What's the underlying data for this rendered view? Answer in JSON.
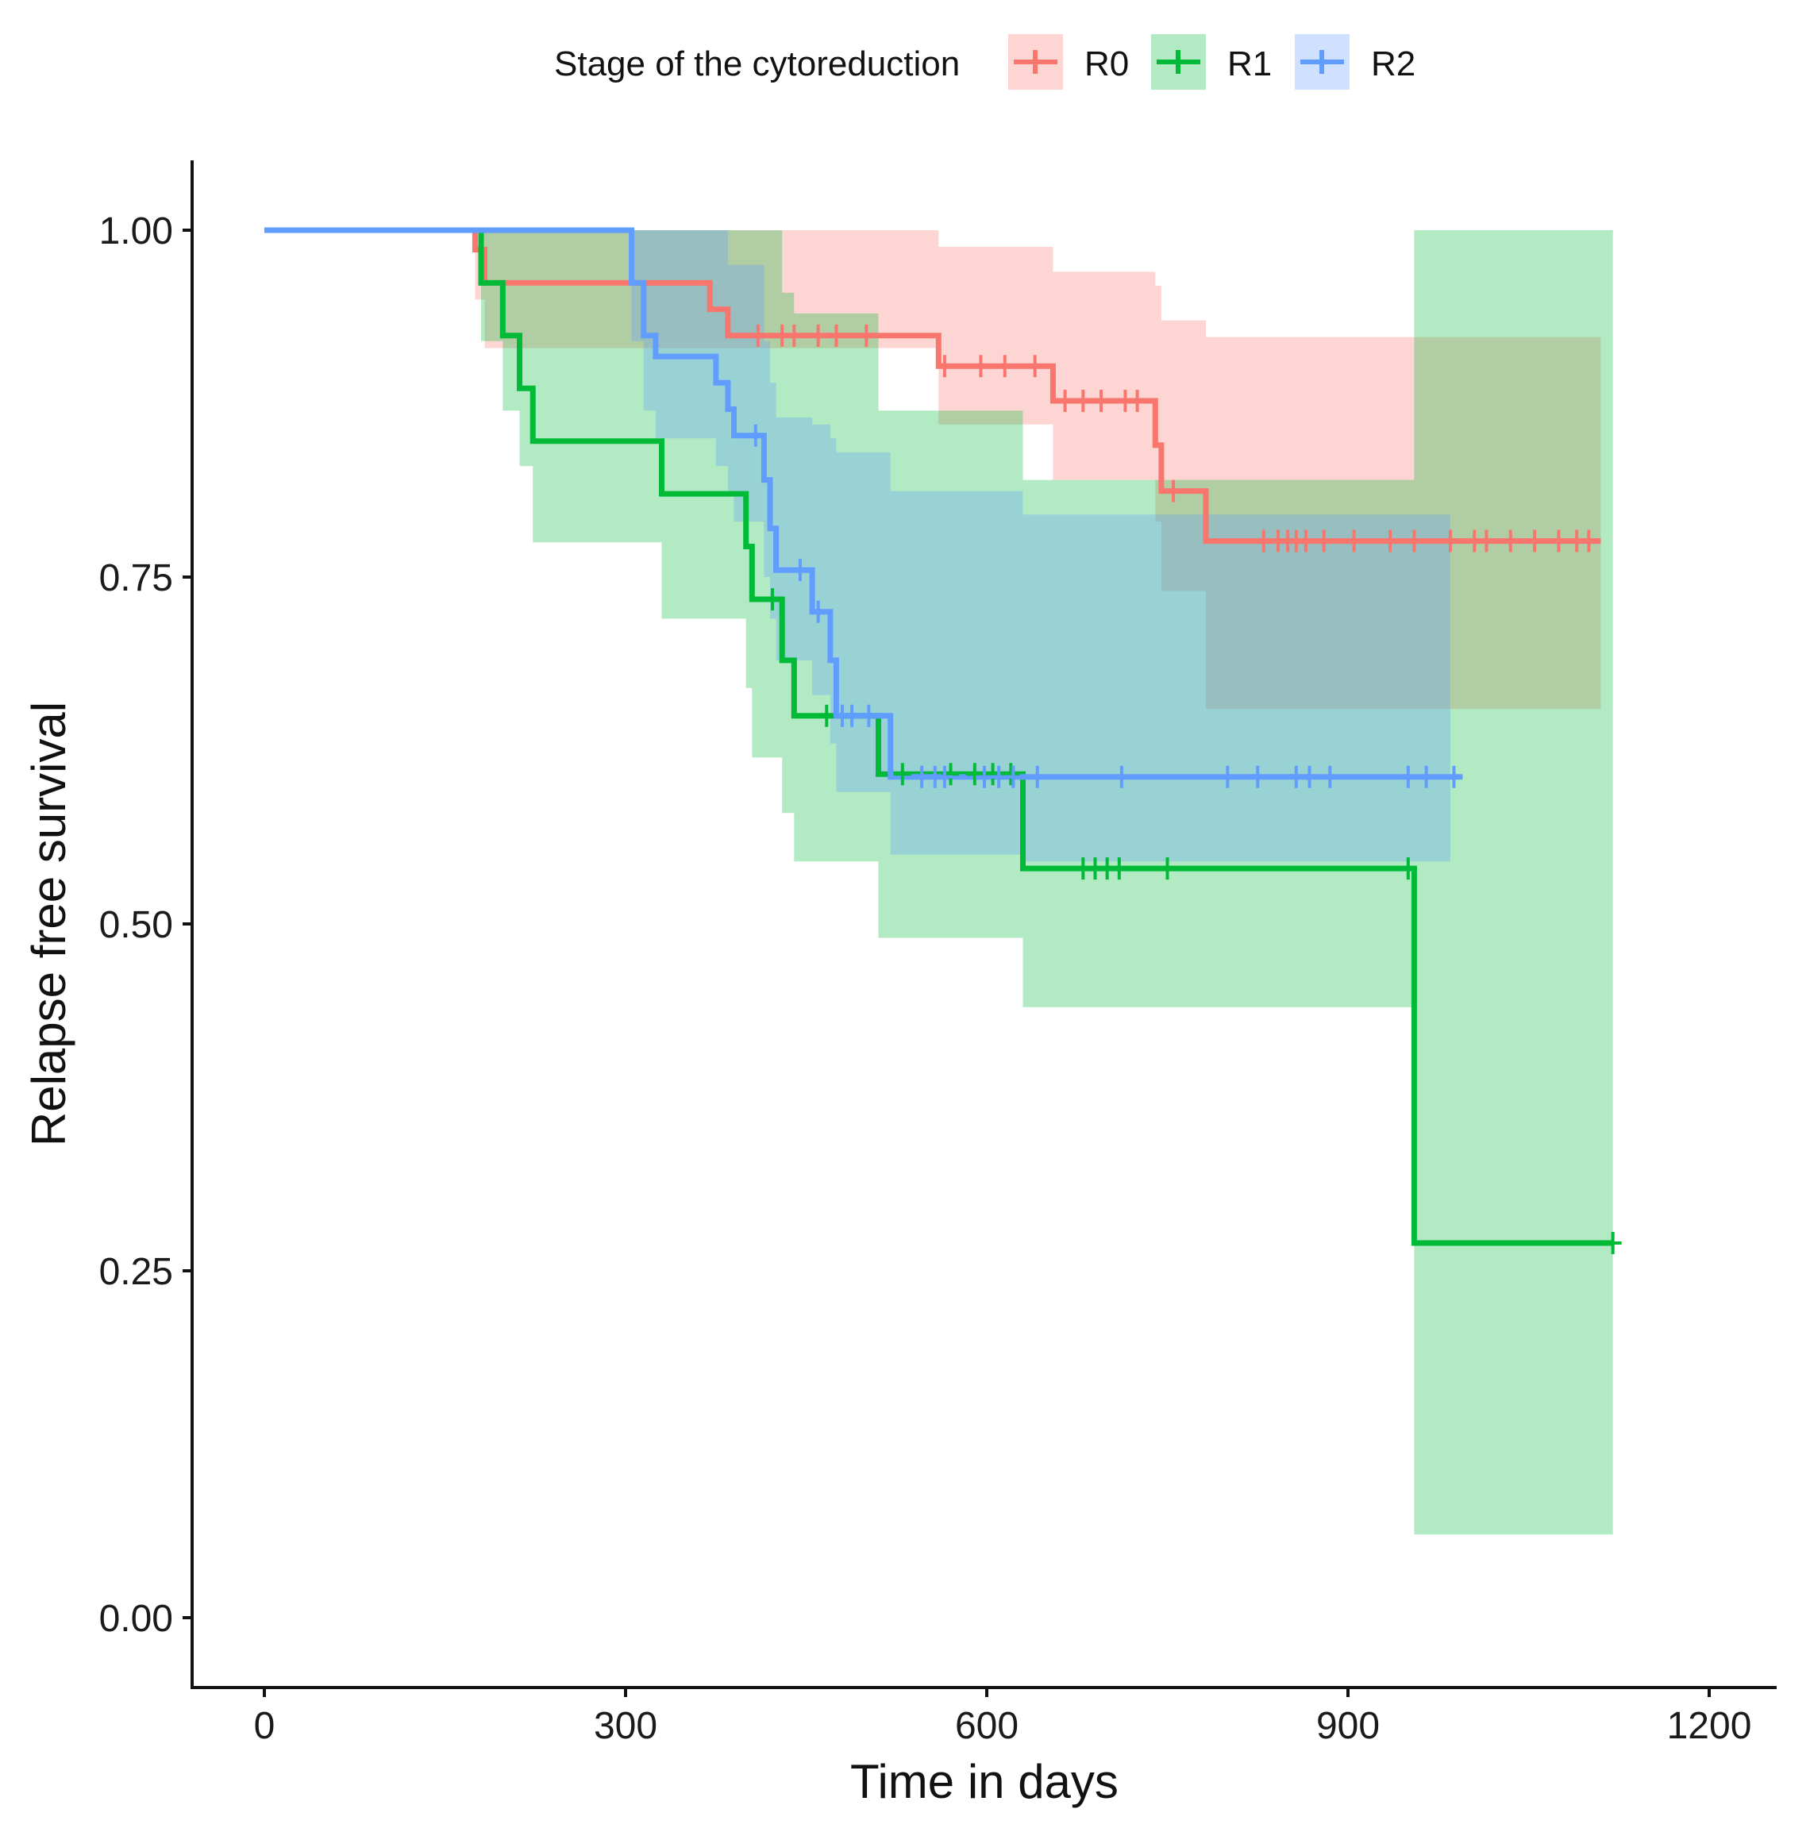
{
  "chart_data": {
    "type": "line",
    "subtype": "kaplan-meier survival curve with confidence bands",
    "xlabel": "Time in days",
    "ylabel": "Relapse free survival",
    "xlim": [
      -150,
      1270
    ],
    "ylim": [
      -0.05,
      1.05
    ],
    "x_ticks": [
      0,
      300,
      600,
      900,
      1200
    ],
    "x_tick_labels": [
      "0",
      "300",
      "600",
      "900",
      "1200"
    ],
    "y_ticks": [
      0,
      0.25,
      0.5,
      0.75,
      1
    ],
    "y_tick_labels": [
      "0.00",
      "0.25",
      "0.50",
      "0.75",
      "1.00"
    ],
    "grid": false,
    "legend": {
      "title": "Stage of the cytoreduction",
      "placement": "top"
    },
    "series": [
      {
        "name": "R0",
        "color": "#F8766D",
        "band_color": "#F8766D",
        "steps": [
          [
            0,
            1.0
          ],
          [
            175,
            0.986
          ],
          [
            183,
            0.962
          ],
          [
            370,
            0.943
          ],
          [
            385,
            0.924
          ],
          [
            560,
            0.902
          ],
          [
            655,
            0.877
          ],
          [
            740,
            0.845
          ],
          [
            745,
            0.812
          ],
          [
            782,
            0.776
          ],
          [
            1110,
            0.776
          ]
        ],
        "ci": [
          [
            0,
            1.0,
            1.0
          ],
          [
            175,
            1.0,
            0.95
          ],
          [
            183,
            1.0,
            0.915
          ],
          [
            370,
            1.0,
            0.915
          ],
          [
            385,
            1.0,
            0.915
          ],
          [
            560,
            0.988,
            0.86
          ],
          [
            655,
            0.97,
            0.82
          ],
          [
            740,
            0.96,
            0.79
          ],
          [
            745,
            0.935,
            0.74
          ],
          [
            782,
            0.923,
            0.655
          ],
          [
            1110,
            0.923,
            0.655
          ]
        ],
        "censor_times": [
          410,
          430,
          440,
          460,
          475,
          500,
          565,
          595,
          615,
          640,
          665,
          680,
          695,
          715,
          725,
          755,
          830,
          842,
          850,
          857,
          865,
          880,
          905,
          935,
          955,
          985,
          1005,
          1015,
          1035,
          1055,
          1075,
          1090,
          1100
        ]
      },
      {
        "name": "R1",
        "color": "#00BA38",
        "band_color": "#00BA38",
        "steps": [
          [
            0,
            1.0
          ],
          [
            180,
            0.962
          ],
          [
            198,
            0.924
          ],
          [
            212,
            0.886
          ],
          [
            223,
            0.848
          ],
          [
            330,
            0.81
          ],
          [
            400,
            0.772
          ],
          [
            405,
            0.734
          ],
          [
            430,
            0.69
          ],
          [
            440,
            0.65
          ],
          [
            510,
            0.608
          ],
          [
            630,
            0.54
          ],
          [
            955,
            0.27
          ],
          [
            1120,
            0.27
          ]
        ],
        "ci": [
          [
            0,
            1.0,
            1.0
          ],
          [
            180,
            1.0,
            0.92
          ],
          [
            198,
            1.0,
            0.87
          ],
          [
            212,
            1.0,
            0.83
          ],
          [
            223,
            1.0,
            0.775
          ],
          [
            330,
            1.0,
            0.72
          ],
          [
            400,
            1.0,
            0.67
          ],
          [
            405,
            1.0,
            0.62
          ],
          [
            430,
            0.955,
            0.58
          ],
          [
            440,
            0.94,
            0.545
          ],
          [
            510,
            0.87,
            0.49
          ],
          [
            630,
            0.82,
            0.44
          ],
          [
            955,
            1.0,
            0.06
          ],
          [
            1120,
            1.0,
            0.06
          ]
        ],
        "censor_times": [
          422,
          467,
          530,
          570,
          590,
          605,
          620,
          680,
          690,
          700,
          710,
          750,
          950,
          1120
        ]
      },
      {
        "name": "R2",
        "color": "#619CFF",
        "band_color": "#619CFF",
        "steps": [
          [
            0,
            1.0
          ],
          [
            305,
            0.962
          ],
          [
            315,
            0.924
          ],
          [
            325,
            0.909
          ],
          [
            375,
            0.89
          ],
          [
            385,
            0.871
          ],
          [
            390,
            0.852
          ],
          [
            415,
            0.82
          ],
          [
            420,
            0.785
          ],
          [
            425,
            0.755
          ],
          [
            455,
            0.725
          ],
          [
            470,
            0.69
          ],
          [
            475,
            0.65
          ],
          [
            520,
            0.606
          ],
          [
            995,
            0.606
          ]
        ],
        "ci": [
          [
            0,
            1.0,
            1.0
          ],
          [
            305,
            1.0,
            0.92
          ],
          [
            315,
            1.0,
            0.87
          ],
          [
            325,
            1.0,
            0.85
          ],
          [
            375,
            1.0,
            0.83
          ],
          [
            385,
            0.975,
            0.81
          ],
          [
            390,
            0.975,
            0.79
          ],
          [
            415,
            0.92,
            0.75
          ],
          [
            420,
            0.89,
            0.72
          ],
          [
            425,
            0.865,
            0.69
          ],
          [
            455,
            0.86,
            0.665
          ],
          [
            470,
            0.85,
            0.63
          ],
          [
            475,
            0.84,
            0.595
          ],
          [
            520,
            0.812,
            0.55
          ],
          [
            630,
            0.795,
            0.545
          ],
          [
            985,
            0.795,
            0.545
          ]
        ],
        "censor_times": [
          408,
          445,
          460,
          480,
          488,
          502,
          546,
          557,
          565,
          598,
          610,
          622,
          642,
          712,
          800,
          825,
          857,
          868,
          885,
          950,
          965,
          988
        ]
      }
    ]
  }
}
